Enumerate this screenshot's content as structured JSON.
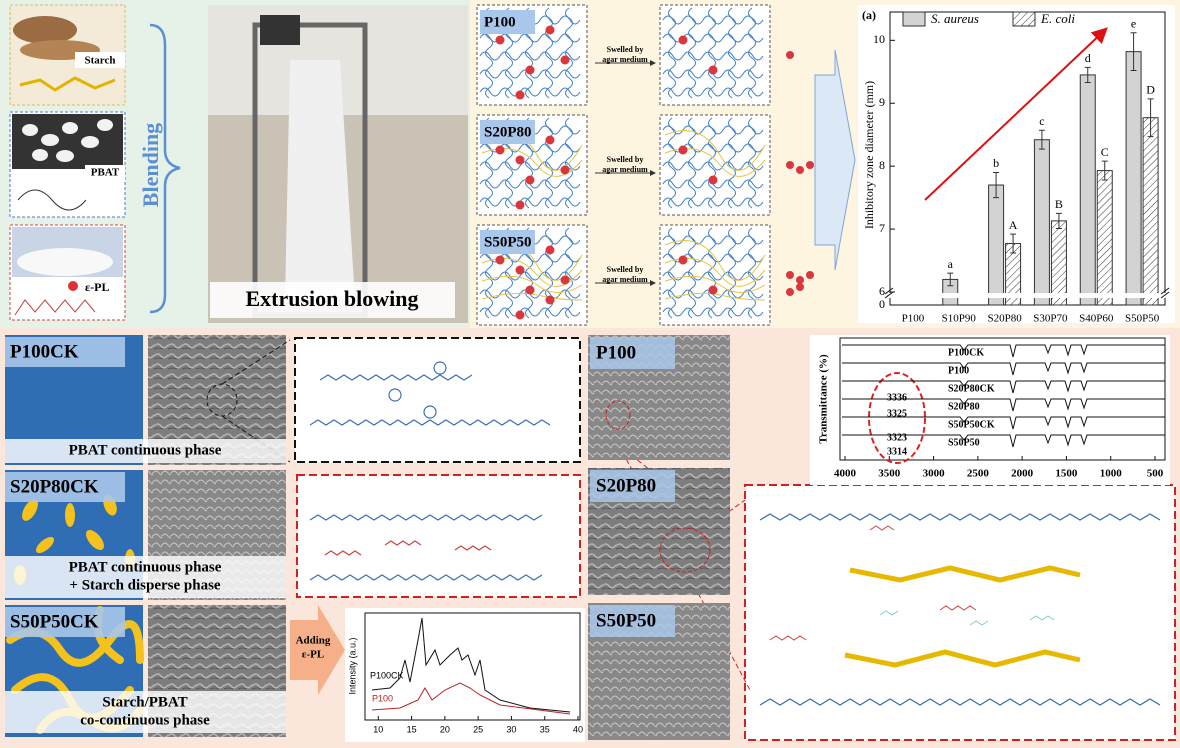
{
  "blending": {
    "title": "Blending",
    "materials": [
      "Starch",
      "PBAT",
      "ε-PL"
    ]
  },
  "process": "Extrusion blowing",
  "swelling": {
    "samples": [
      "P100",
      "S20P80",
      "S50P50"
    ],
    "arrow_label": [
      "Swelled by",
      "agar medium"
    ]
  },
  "chart_data": {
    "type": "bar",
    "panel": "(a)",
    "y_label": "Inhibitory zone diameter (mm)",
    "categories": [
      "P100",
      "S10P90",
      "S20P80",
      "S30P70",
      "S40P60",
      "S50P50"
    ],
    "series": [
      {
        "name": "S. aureus",
        "color": "#d3d3d3",
        "values": [
          null,
          6.2,
          7.7,
          8.42,
          9.45,
          9.82
        ],
        "errors": [
          null,
          0.1,
          0.2,
          0.15,
          0.12,
          0.3
        ],
        "letters": [
          null,
          "a",
          "b",
          "c",
          "d",
          "e"
        ]
      },
      {
        "name": "E. coli",
        "color": "hatch",
        "values": [
          null,
          null,
          6.77,
          7.13,
          7.93,
          8.77
        ],
        "errors": [
          null,
          null,
          0.15,
          0.12,
          0.15,
          0.3
        ],
        "letters": [
          null,
          null,
          "A",
          "B",
          "C",
          "D"
        ]
      }
    ],
    "ylim": [
      0,
      10.45
    ],
    "ybreak": [
      0,
      5.85
    ],
    "yticks": [
      0,
      6,
      7,
      8,
      9,
      10
    ],
    "legend": "top"
  },
  "morphology": [
    {
      "name": "P100CK",
      "phase": [
        "PBAT continuous phase"
      ]
    },
    {
      "name": "S20P80CK",
      "phase": [
        "PBAT continuous phase",
        "+ Starch disperse phase"
      ]
    },
    {
      "name": "S50P50CK",
      "phase": [
        "Starch/PBAT",
        "co-continuous phase"
      ]
    }
  ],
  "adding": [
    "Adding",
    "ε-PL"
  ],
  "sem_labels": [
    "P100",
    "S20P80",
    "S50P50"
  ],
  "ftir": {
    "y_label": "Transmittance (%)",
    "curves": [
      "P100CK",
      "P100",
      "S20P80CK",
      "S20P80",
      "S50P50CK",
      "S50P50"
    ],
    "peaks": [
      "3336",
      "3325",
      "3323",
      "3314"
    ],
    "xlim": [
      4000,
      500
    ],
    "xticks": [
      4000,
      3500,
      3000,
      2500,
      2000,
      1500,
      1000,
      500
    ]
  },
  "xrd": {
    "y_label": "Intensity (a.u.)",
    "curves": [
      "P100CK",
      "P100"
    ],
    "xlim": [
      8,
      40
    ],
    "xticks": [
      10,
      15,
      20,
      25,
      30,
      35,
      40
    ]
  }
}
